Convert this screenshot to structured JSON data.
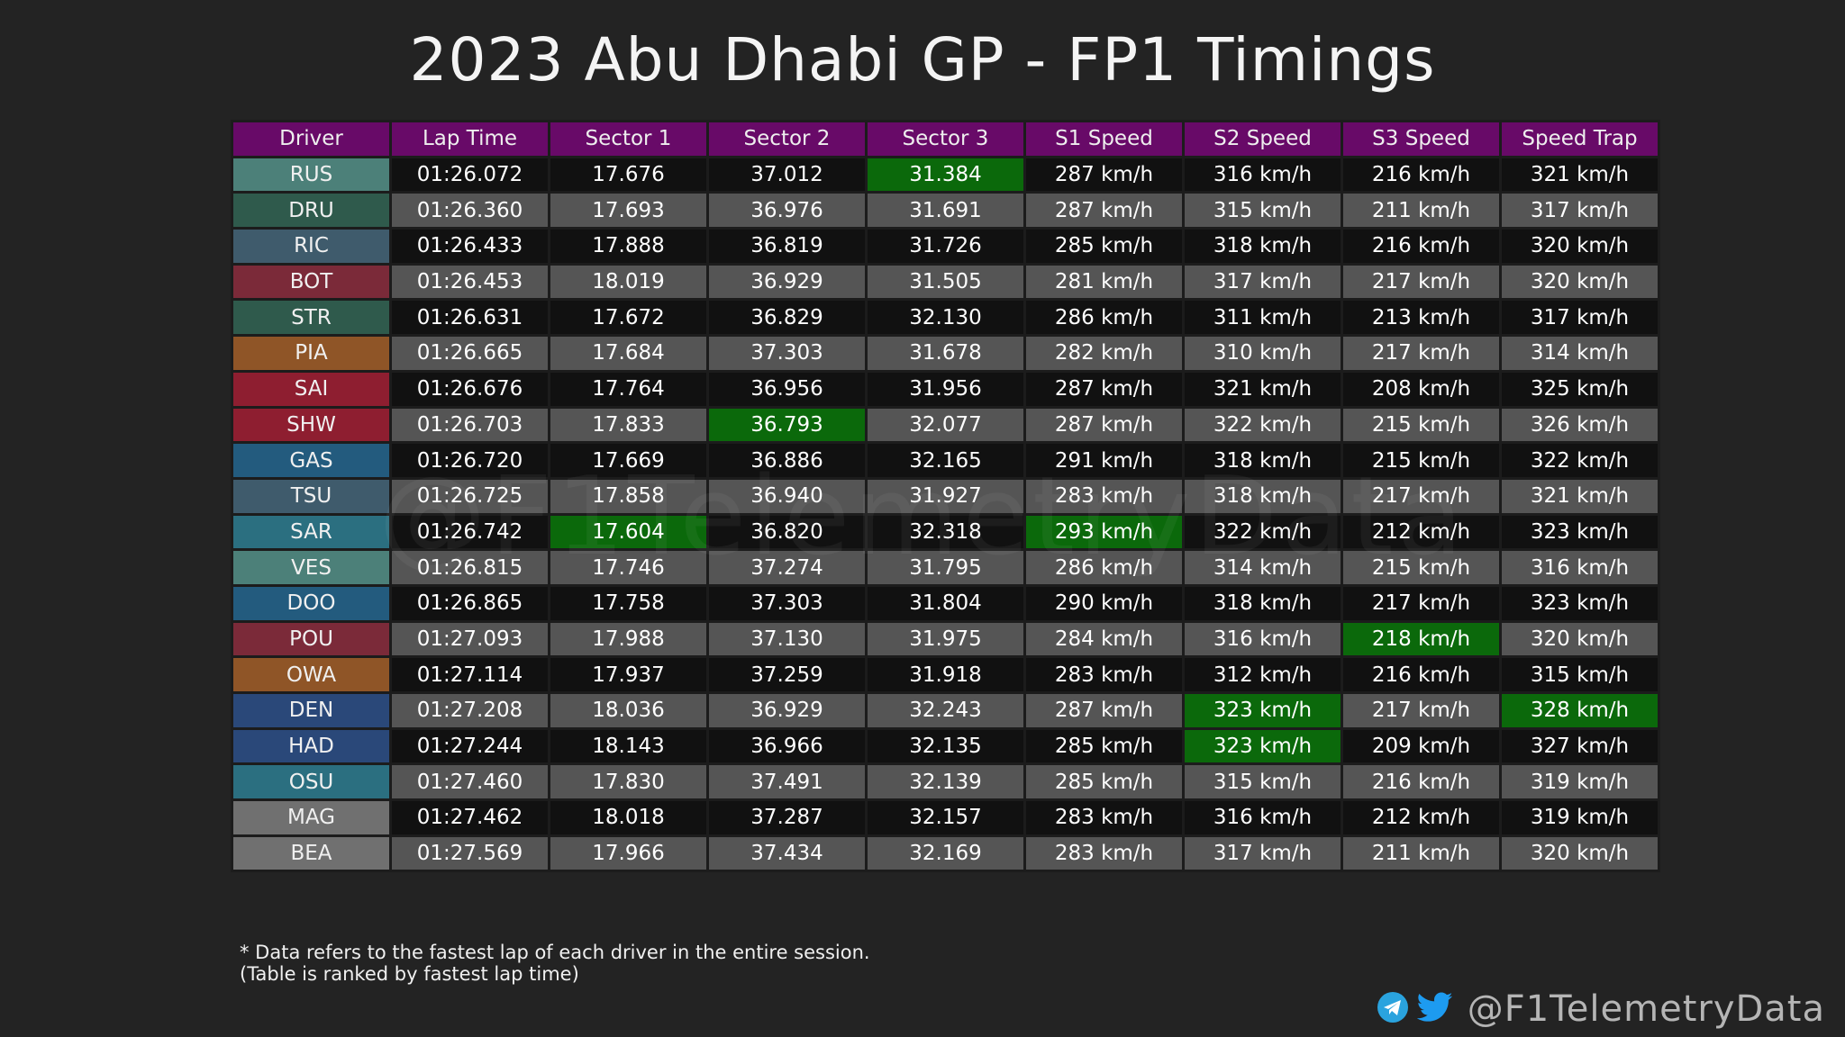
{
  "title": "2023 Abu Dhabi GP - FP1 Timings",
  "watermark": "@F1TelemetryData",
  "colors": {
    "header": "#680a68",
    "best": "#0b690b",
    "row_dark": "#111111",
    "row_light": "#555555",
    "background": "#232323"
  },
  "table": {
    "columns": [
      "Driver",
      "Lap Time",
      "Sector 1",
      "Sector 2",
      "Sector 3",
      "S1 Speed",
      "S2 Speed",
      "S3 Speed",
      "Speed Trap"
    ],
    "rows": [
      {
        "driver": "RUS",
        "color": "#4c8079",
        "cells": [
          "01:26.072",
          "17.676",
          "37.012",
          "31.384",
          "287 km/h",
          "316 km/h",
          "216 km/h",
          "321 km/h"
        ],
        "best": [
          3
        ]
      },
      {
        "driver": "DRU",
        "color": "#2f5a4c",
        "cells": [
          "01:26.360",
          "17.693",
          "36.976",
          "31.691",
          "287 km/h",
          "315 km/h",
          "211 km/h",
          "317 km/h"
        ],
        "best": []
      },
      {
        "driver": "RIC",
        "color": "#3f5b6c",
        "cells": [
          "01:26.433",
          "17.888",
          "36.819",
          "31.726",
          "285 km/h",
          "318 km/h",
          "216 km/h",
          "320 km/h"
        ],
        "best": []
      },
      {
        "driver": "BOT",
        "color": "#7b2a39",
        "cells": [
          "01:26.453",
          "18.019",
          "36.929",
          "31.505",
          "281 km/h",
          "317 km/h",
          "217 km/h",
          "320 km/h"
        ],
        "best": []
      },
      {
        "driver": "STR",
        "color": "#2f5a4c",
        "cells": [
          "01:26.631",
          "17.672",
          "36.829",
          "32.130",
          "286 km/h",
          "311 km/h",
          "213 km/h",
          "317 km/h"
        ],
        "best": []
      },
      {
        "driver": "PIA",
        "color": "#8f5527",
        "cells": [
          "01:26.665",
          "17.684",
          "37.303",
          "31.678",
          "282 km/h",
          "310 km/h",
          "217 km/h",
          "314 km/h"
        ],
        "best": []
      },
      {
        "driver": "SAI",
        "color": "#8e1e30",
        "cells": [
          "01:26.676",
          "17.764",
          "36.956",
          "31.956",
          "287 km/h",
          "321 km/h",
          "208 km/h",
          "325 km/h"
        ],
        "best": []
      },
      {
        "driver": "SHW",
        "color": "#8e1e30",
        "cells": [
          "01:26.703",
          "17.833",
          "36.793",
          "32.077",
          "287 km/h",
          "322 km/h",
          "215 km/h",
          "326 km/h"
        ],
        "best": [
          2
        ]
      },
      {
        "driver": "GAS",
        "color": "#235b7e",
        "cells": [
          "01:26.720",
          "17.669",
          "36.886",
          "32.165",
          "291 km/h",
          "318 km/h",
          "215 km/h",
          "322 km/h"
        ],
        "best": []
      },
      {
        "driver": "TSU",
        "color": "#3f5b6c",
        "cells": [
          "01:26.725",
          "17.858",
          "36.940",
          "31.927",
          "283 km/h",
          "318 km/h",
          "217 km/h",
          "321 km/h"
        ],
        "best": []
      },
      {
        "driver": "SAR",
        "color": "#2b6f80",
        "cells": [
          "01:26.742",
          "17.604",
          "36.820",
          "32.318",
          "293 km/h",
          "322 km/h",
          "212 km/h",
          "323 km/h"
        ],
        "best": [
          1,
          4
        ]
      },
      {
        "driver": "VES",
        "color": "#4c8079",
        "cells": [
          "01:26.815",
          "17.746",
          "37.274",
          "31.795",
          "286 km/h",
          "314 km/h",
          "215 km/h",
          "316 km/h"
        ],
        "best": []
      },
      {
        "driver": "DOO",
        "color": "#235b7e",
        "cells": [
          "01:26.865",
          "17.758",
          "37.303",
          "31.804",
          "290 km/h",
          "318 km/h",
          "217 km/h",
          "323 km/h"
        ],
        "best": []
      },
      {
        "driver": "POU",
        "color": "#7b2a39",
        "cells": [
          "01:27.093",
          "17.988",
          "37.130",
          "31.975",
          "284 km/h",
          "316 km/h",
          "218 km/h",
          "320 km/h"
        ],
        "best": [
          6
        ]
      },
      {
        "driver": "OWA",
        "color": "#8f5527",
        "cells": [
          "01:27.114",
          "17.937",
          "37.259",
          "31.918",
          "283 km/h",
          "312 km/h",
          "216 km/h",
          "315 km/h"
        ],
        "best": []
      },
      {
        "driver": "DEN",
        "color": "#2a4879",
        "cells": [
          "01:27.208",
          "18.036",
          "36.929",
          "32.243",
          "287 km/h",
          "323 km/h",
          "217 km/h",
          "328 km/h"
        ],
        "best": [
          5,
          7
        ]
      },
      {
        "driver": "HAD",
        "color": "#2a4879",
        "cells": [
          "01:27.244",
          "18.143",
          "36.966",
          "32.135",
          "285 km/h",
          "323 km/h",
          "209 km/h",
          "327 km/h"
        ],
        "best": [
          5
        ]
      },
      {
        "driver": "OSU",
        "color": "#2b6f80",
        "cells": [
          "01:27.460",
          "17.830",
          "37.491",
          "32.139",
          "285 km/h",
          "315 km/h",
          "216 km/h",
          "319 km/h"
        ],
        "best": []
      },
      {
        "driver": "MAG",
        "color": "#707070",
        "cells": [
          "01:27.462",
          "18.018",
          "37.287",
          "32.157",
          "283 km/h",
          "316 km/h",
          "212 km/h",
          "319 km/h"
        ],
        "best": []
      },
      {
        "driver": "BEA",
        "color": "#707070",
        "cells": [
          "01:27.569",
          "17.966",
          "37.434",
          "32.169",
          "283 km/h",
          "317 km/h",
          "211 km/h",
          "320 km/h"
        ],
        "best": []
      }
    ]
  },
  "notes": [
    "* Data refers to the fastest lap of each driver in the entire session.",
    "(Table is ranked by fastest lap time)"
  ],
  "branding": {
    "handle": "@F1TelemetryData",
    "icons": [
      "telegram-icon",
      "twitter-icon"
    ]
  }
}
